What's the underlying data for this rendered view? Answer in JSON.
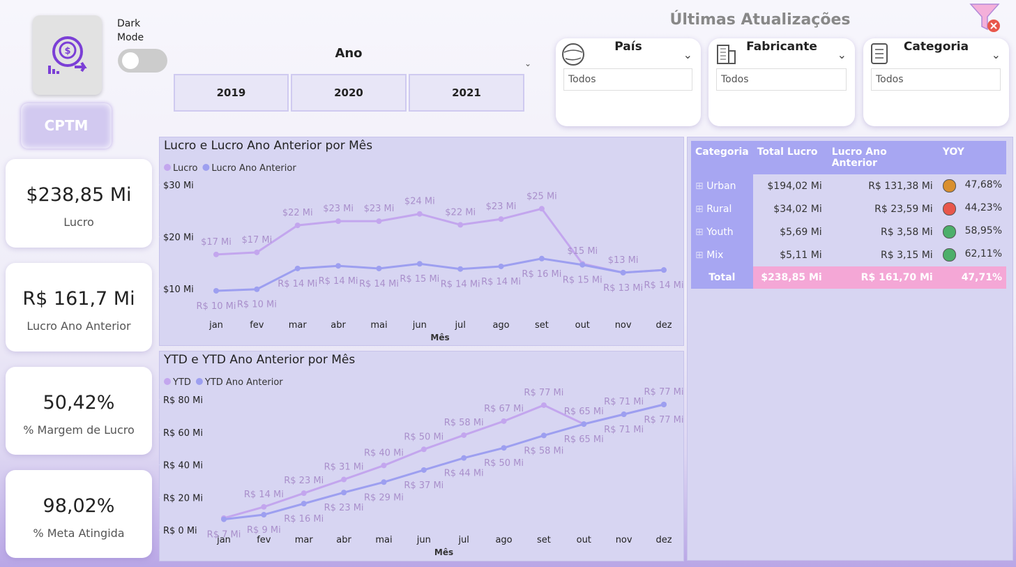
{
  "header": {
    "dark_mode": "Dark Mode",
    "logo_text": "CPTM",
    "updates_title": "Últimas Atualizações"
  },
  "year_slicer": {
    "title": "Ano",
    "options": [
      "2019",
      "2020",
      "2021"
    ]
  },
  "filters": [
    {
      "title": "País",
      "value": "Todos"
    },
    {
      "title": "Fabricante",
      "value": "Todos"
    },
    {
      "title": "Categoria",
      "value": "Todos"
    }
  ],
  "cards": [
    {
      "value": "$238,85 Mi",
      "label": "Lucro"
    },
    {
      "value": "R$ 161,7 Mi",
      "label": "Lucro Ano Anterior"
    },
    {
      "value": "50,42%",
      "label": "% Margem de Lucro"
    },
    {
      "value": "98,02%",
      "label": "% Meta Atingida"
    }
  ],
  "table": {
    "columns": [
      "Categoria",
      "Total Lucro",
      "Lucro Ano Anterior",
      "YOY"
    ],
    "rows": [
      [
        "Urban",
        "$194,02 Mi",
        "R$ 131,38 Mi",
        "47,68%"
      ],
      [
        "Rural",
        "$34,02 Mi",
        "R$ 23,59 Mi",
        "44,23%"
      ],
      [
        "Youth",
        "$5,69 Mi",
        "R$ 3,58 Mi",
        "58,95%"
      ],
      [
        "Mix",
        "$5,11 Mi",
        "R$ 3,15 Mi",
        "62,11%"
      ]
    ],
    "status_colors": [
      "#d98f2f",
      "#e8574b",
      "#4caf6a",
      "#4caf6a"
    ],
    "total": [
      "Total",
      "$238,85 Mi",
      "R$ 161,70 Mi",
      "47,71%"
    ]
  },
  "chart_data": [
    {
      "type": "line",
      "title": "Lucro e Lucro Ano Anterior por Mês",
      "x_label": "Mês",
      "categories": [
        "jan",
        "fev",
        "mar",
        "abr",
        "mai",
        "jun",
        "jul",
        "ago",
        "set",
        "out",
        "nov",
        "dez"
      ],
      "ylim": [
        6,
        30
      ],
      "yticks": [
        {
          "value": 10,
          "label": "$10 Mi"
        },
        {
          "value": 20,
          "label": "$20 Mi"
        },
        {
          "value": 30,
          "label": "$30 Mi"
        }
      ],
      "grid": false,
      "series": [
        {
          "name": "Lucro",
          "color": "#c3a6ee",
          "values": [
            16.6,
            17.0,
            22.2,
            23.0,
            23.0,
            24.4,
            22.3,
            23.4,
            25.4,
            14.8,
            13.1,
            13.6
          ],
          "value_labels": [
            "$17 Mi",
            "$17 Mi",
            "$22 Mi",
            "$23 Mi",
            "$23 Mi",
            "$24 Mi",
            "$22 Mi",
            "$23 Mi",
            "$25 Mi",
            "$15 Mi",
            "$13 Mi",
            null
          ]
        },
        {
          "name": "Lucro Ano Anterior",
          "color": "#9d9ff0",
          "values": [
            9.6,
            9.9,
            13.9,
            14.4,
            13.9,
            14.8,
            13.8,
            14.3,
            15.8,
            14.6,
            13.1,
            13.6
          ],
          "value_labels": [
            "R$ 10 Mi",
            "R$ 10 Mi",
            "R$ 14 Mi",
            "R$ 14 Mi",
            "R$ 14 Mi",
            "R$ 15 Mi",
            "R$ 14 Mi",
            "R$ 14 Mi",
            "R$ 16 Mi",
            "R$ 15 Mi",
            "R$ 13 Mi",
            "R$ 14 Mi"
          ]
        }
      ]
    },
    {
      "type": "line",
      "title": "YTD e YTD Ano Anterior por Mês",
      "x_label": "Mês",
      "categories": [
        "jan",
        "fev",
        "mar",
        "abr",
        "mai",
        "jun",
        "jul",
        "ago",
        "set",
        "out",
        "nov",
        "dez"
      ],
      "ylim": [
        0,
        80
      ],
      "yticks": [
        {
          "value": 0,
          "label": "R$ 0 Mi"
        },
        {
          "value": 20,
          "label": "R$ 20 Mi"
        },
        {
          "value": 40,
          "label": "R$ 40 Mi"
        },
        {
          "value": 60,
          "label": "R$ 60 Mi"
        },
        {
          "value": 80,
          "label": "R$ 80 Mi"
        }
      ],
      "grid": false,
      "series": [
        {
          "name": "YTD",
          "color": "#c3a6ee",
          "values": [
            7.3,
            14.2,
            22.6,
            31.0,
            39.6,
            49.5,
            58.2,
            66.8,
            76.6,
            65.0,
            71.0,
            77.0
          ],
          "value_labels": [
            null,
            "R$ 14 Mi",
            "R$ 23 Mi",
            "R$ 31 Mi",
            "R$ 40 Mi",
            "R$ 50 Mi",
            "R$ 58 Mi",
            "R$ 67 Mi",
            "R$ 77 Mi",
            "R$ 65 Mi",
            "R$ 71 Mi",
            "R$ 77 Mi"
          ]
        },
        {
          "name": "YTD Ano Anterior",
          "color": "#9d9ff0",
          "values": [
            6.6,
            9.4,
            16.2,
            23.0,
            29.4,
            36.8,
            44.2,
            50.4,
            58.0,
            65.0,
            71.0,
            77.0
          ],
          "value_labels": [
            "R$ 7 Mi",
            "R$ 9 Mi",
            "R$ 16 Mi",
            "R$ 23 Mi",
            "R$ 29 Mi",
            "R$ 37 Mi",
            "R$ 44 Mi",
            "R$ 50 Mi",
            "R$ 58 Mi",
            "R$ 65 Mi",
            "R$ 71 Mi",
            "R$ 77 Mi"
          ]
        }
      ]
    }
  ]
}
